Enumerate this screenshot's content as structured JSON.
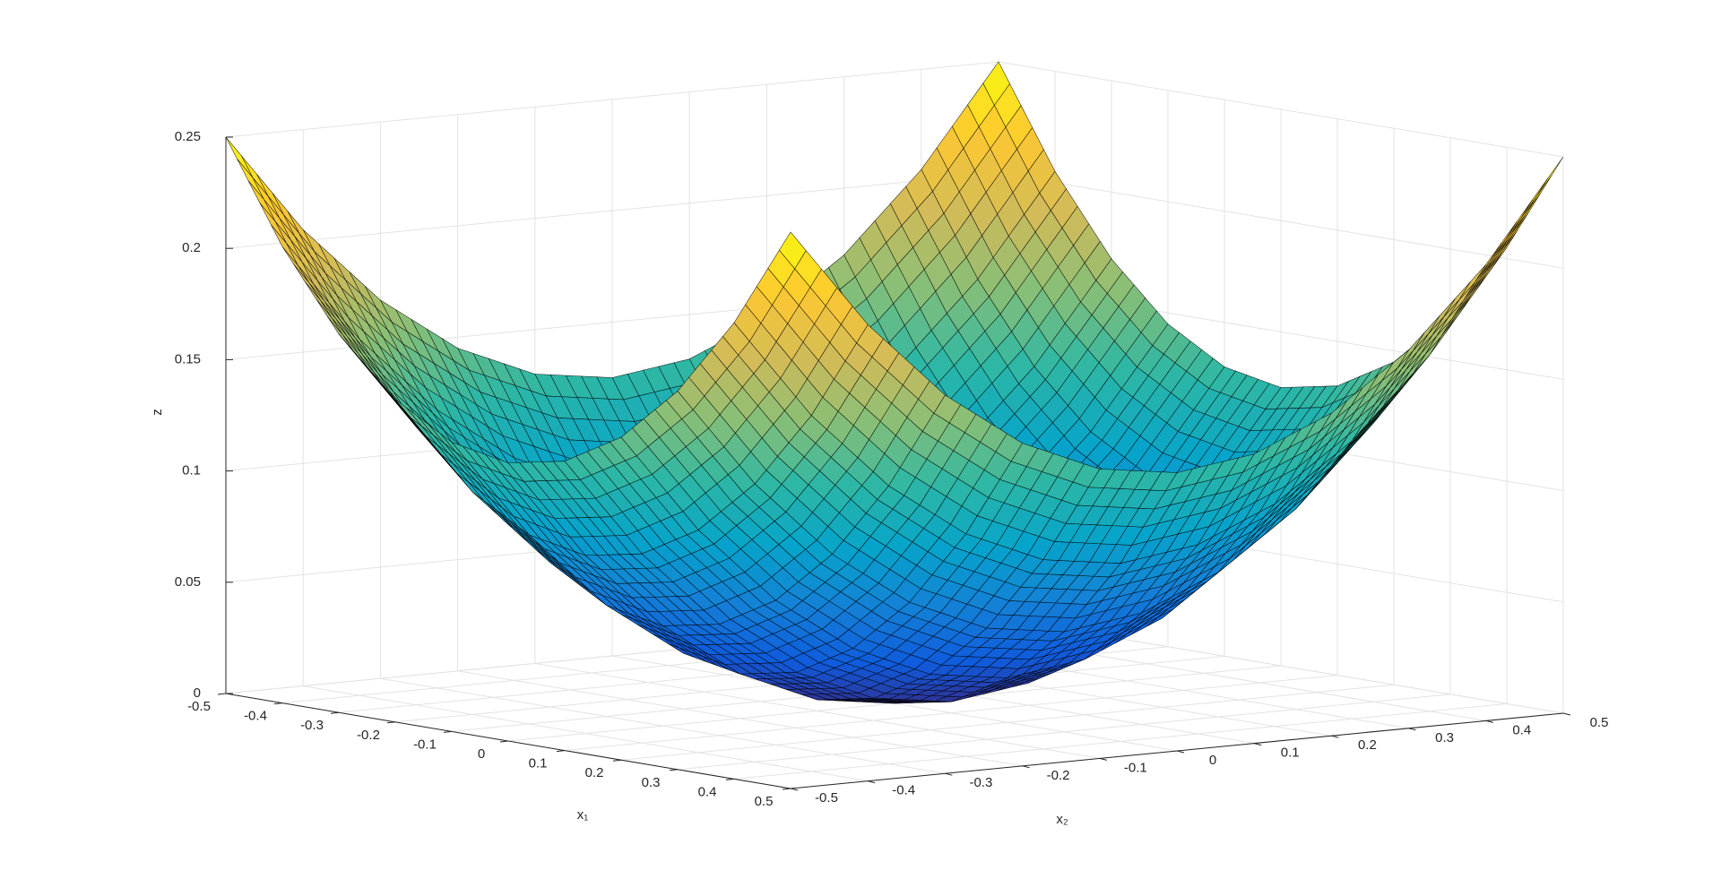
{
  "chart_data": {
    "type": "surface",
    "xlabel": "x₁",
    "ylabel": "x₂",
    "zlabel": "z",
    "x": [
      -0.5,
      -0.4,
      -0.3,
      -0.2,
      -0.1,
      0,
      0.1,
      0.2,
      0.3,
      0.4,
      0.5
    ],
    "y": [
      -0.5,
      -0.4,
      -0.3,
      -0.2,
      -0.1,
      0,
      0.1,
      0.2,
      0.3,
      0.4,
      0.5
    ],
    "z": [
      [
        0.25,
        0.205,
        0.17,
        0.145,
        0.13,
        0.125,
        0.13,
        0.145,
        0.17,
        0.205,
        0.25
      ],
      [
        0.205,
        0.16,
        0.125,
        0.1,
        0.085,
        0.08,
        0.085,
        0.1,
        0.125,
        0.16,
        0.205
      ],
      [
        0.17,
        0.125,
        0.09,
        0.065,
        0.05,
        0.045,
        0.05,
        0.065,
        0.09,
        0.125,
        0.17
      ],
      [
        0.145,
        0.1,
        0.065,
        0.04,
        0.025,
        0.02,
        0.025,
        0.04,
        0.065,
        0.1,
        0.145
      ],
      [
        0.13,
        0.085,
        0.05,
        0.025,
        0.01,
        0.005,
        0.01,
        0.025,
        0.05,
        0.085,
        0.13
      ],
      [
        0.125,
        0.08,
        0.045,
        0.02,
        0.005,
        0,
        0.005,
        0.02,
        0.045,
        0.08,
        0.125
      ],
      [
        0.13,
        0.085,
        0.05,
        0.025,
        0.01,
        0.005,
        0.01,
        0.025,
        0.05,
        0.085,
        0.13
      ],
      [
        0.145,
        0.1,
        0.065,
        0.04,
        0.025,
        0.02,
        0.025,
        0.04,
        0.065,
        0.1,
        0.145
      ],
      [
        0.17,
        0.125,
        0.09,
        0.065,
        0.05,
        0.045,
        0.05,
        0.065,
        0.09,
        0.125,
        0.17
      ],
      [
        0.205,
        0.16,
        0.125,
        0.1,
        0.085,
        0.08,
        0.085,
        0.1,
        0.125,
        0.16,
        0.205
      ],
      [
        0.25,
        0.205,
        0.17,
        0.145,
        0.13,
        0.125,
        0.13,
        0.145,
        0.17,
        0.205,
        0.25
      ]
    ],
    "xlim": [
      -0.5,
      0.5
    ],
    "ylim": [
      -0.5,
      0.5
    ],
    "zlim": [
      0,
      0.25
    ],
    "xticks": [
      -0.5,
      -0.4,
      -0.3,
      -0.2,
      -0.1,
      0,
      0.1,
      0.2,
      0.3,
      0.4,
      0.5
    ],
    "yticks": [
      -0.5,
      -0.4,
      -0.3,
      -0.2,
      -0.1,
      0,
      0.1,
      0.2,
      0.3,
      0.4,
      0.5
    ],
    "zticks": [
      0,
      0.05,
      0.1,
      0.15,
      0.2,
      0.25
    ],
    "grid": true,
    "colormap": [
      "#352a87",
      "#0f5cdd",
      "#1481d6",
      "#06a4ca",
      "#2eb7a4",
      "#87bf77",
      "#d1bb59",
      "#fec832",
      "#f9fb0e"
    ]
  }
}
